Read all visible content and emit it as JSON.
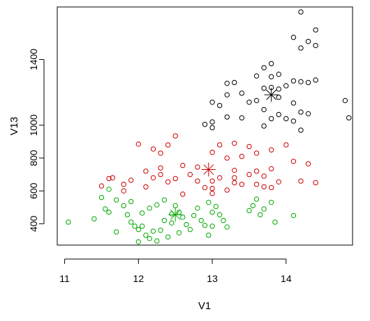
{
  "chart_data": {
    "type": "scatter",
    "xlabel": "V1",
    "ylabel": "V13",
    "xlim": [
      10.9,
      14.9
    ],
    "ylim": [
      270,
      1720
    ],
    "x_ticks": [
      11,
      12,
      13,
      14
    ],
    "y_ticks": [
      400,
      600,
      800,
      1000,
      1400
    ],
    "grid": false,
    "legend": "none",
    "series": [
      {
        "color": "#000000",
        "points": [
          [
            14.2,
            1690
          ],
          [
            14.4,
            1580
          ],
          [
            14.1,
            1535
          ],
          [
            14.3,
            1510
          ],
          [
            14.4,
            1485
          ],
          [
            14.2,
            1470
          ],
          [
            13.8,
            1375
          ],
          [
            13.7,
            1350
          ],
          [
            13.9,
            1310
          ],
          [
            13.6,
            1300
          ],
          [
            13.8,
            1295
          ],
          [
            13.3,
            1260
          ],
          [
            13.2,
            1255
          ],
          [
            14.1,
            1270
          ],
          [
            14.2,
            1265
          ],
          [
            14.4,
            1275
          ],
          [
            14.3,
            1260
          ],
          [
            14.0,
            1240
          ],
          [
            13.8,
            1230
          ],
          [
            13.7,
            1225
          ],
          [
            13.9,
            1220
          ],
          [
            13.4,
            1195
          ],
          [
            13.2,
            1185
          ],
          [
            13.9,
            1170
          ],
          [
            13.6,
            1150
          ],
          [
            13.5,
            1140
          ],
          [
            13.0,
            1140
          ],
          [
            14.8,
            1150
          ],
          [
            14.1,
            1135
          ],
          [
            13.1,
            1120
          ],
          [
            13.7,
            1095
          ],
          [
            14.2,
            1080
          ],
          [
            13.9,
            1065
          ],
          [
            14.3,
            1070
          ],
          [
            13.2,
            1050
          ],
          [
            13.4,
            1045
          ],
          [
            13.8,
            1040
          ],
          [
            14.1,
            1025
          ],
          [
            13.0,
            1020
          ],
          [
            12.9,
            1005
          ],
          [
            14.85,
            1045
          ],
          [
            13.7,
            995
          ],
          [
            13.0,
            985
          ],
          [
            14.2,
            970
          ],
          [
            14.0,
            1040
          ]
        ],
        "center": [
          13.8,
          1185
        ]
      },
      {
        "color": "#cc0000",
        "points": [
          [
            12.5,
            935
          ],
          [
            12.0,
            885
          ],
          [
            12.2,
            855
          ],
          [
            12.4,
            880
          ],
          [
            13.1,
            880
          ],
          [
            13.5,
            870
          ],
          [
            13.3,
            890
          ],
          [
            12.3,
            830
          ],
          [
            13.0,
            835
          ],
          [
            13.6,
            830
          ],
          [
            13.8,
            850
          ],
          [
            14.0,
            880
          ],
          [
            13.2,
            800
          ],
          [
            13.4,
            810
          ],
          [
            12.6,
            755
          ],
          [
            12.3,
            740
          ],
          [
            13.3,
            725
          ],
          [
            13.8,
            735
          ],
          [
            13.6,
            720
          ],
          [
            12.8,
            745
          ],
          [
            14.1,
            780
          ],
          [
            14.3,
            765
          ],
          [
            12.1,
            720
          ],
          [
            12.3,
            700
          ],
          [
            13.5,
            700
          ],
          [
            13.7,
            690
          ],
          [
            13.1,
            680
          ],
          [
            12.5,
            675
          ],
          [
            12.8,
            660
          ],
          [
            13.3,
            650
          ],
          [
            13.6,
            640
          ],
          [
            13.9,
            655
          ],
          [
            14.2,
            660
          ],
          [
            14.4,
            650
          ],
          [
            11.6,
            675
          ],
          [
            11.8,
            640
          ],
          [
            12.4,
            655
          ],
          [
            13.0,
            615
          ],
          [
            13.4,
            640
          ],
          [
            13.7,
            625
          ],
          [
            12.9,
            620
          ],
          [
            11.5,
            630
          ],
          [
            11.8,
            600
          ],
          [
            12.1,
            625
          ],
          [
            12.6,
            580
          ],
          [
            13.2,
            605
          ],
          [
            13.0,
            585
          ],
          [
            11.9,
            665
          ],
          [
            12.2,
            680
          ],
          [
            11.65,
            680
          ],
          [
            13.3,
            680
          ],
          [
            12.7,
            700
          ],
          [
            13.0,
            660
          ],
          [
            13.8,
            620
          ]
        ],
        "center": [
          12.95,
          730
        ]
      },
      {
        "color": "#00aa00",
        "points": [
          [
            11.05,
            410
          ],
          [
            11.4,
            430
          ],
          [
            11.5,
            560
          ],
          [
            11.6,
            610
          ],
          [
            11.7,
            545
          ],
          [
            11.6,
            470
          ],
          [
            11.7,
            350
          ],
          [
            11.8,
            510
          ],
          [
            11.85,
            455
          ],
          [
            11.9,
            410
          ],
          [
            11.95,
            385
          ],
          [
            12.0,
            365
          ],
          [
            12.0,
            290
          ],
          [
            12.1,
            330
          ],
          [
            12.15,
            310
          ],
          [
            12.2,
            355
          ],
          [
            12.25,
            295
          ],
          [
            12.3,
            360
          ],
          [
            12.35,
            420
          ],
          [
            12.4,
            320
          ],
          [
            12.45,
            460
          ],
          [
            12.5,
            510
          ],
          [
            12.55,
            470
          ],
          [
            12.6,
            440
          ],
          [
            12.65,
            395
          ],
          [
            12.7,
            365
          ],
          [
            12.75,
            450
          ],
          [
            12.8,
            495
          ],
          [
            12.85,
            420
          ],
          [
            12.9,
            390
          ],
          [
            12.95,
            530
          ],
          [
            13.0,
            470
          ],
          [
            13.05,
            505
          ],
          [
            13.1,
            455
          ],
          [
            13.15,
            420
          ],
          [
            13.2,
            380
          ],
          [
            13.5,
            480
          ],
          [
            13.55,
            510
          ],
          [
            13.6,
            550
          ],
          [
            13.65,
            455
          ],
          [
            13.7,
            490
          ],
          [
            13.8,
            530
          ],
          [
            13.85,
            410
          ],
          [
            14.1,
            450
          ],
          [
            12.05,
            465
          ],
          [
            12.15,
            495
          ],
          [
            12.25,
            515
          ],
          [
            12.35,
            545
          ],
          [
            11.9,
            535
          ],
          [
            12.45,
            405
          ],
          [
            12.55,
            345
          ],
          [
            12.95,
            330
          ],
          [
            13.0,
            385
          ],
          [
            11.55,
            490
          ],
          [
            12.05,
            385
          ]
        ],
        "center": [
          12.5,
          455
        ]
      }
    ]
  }
}
